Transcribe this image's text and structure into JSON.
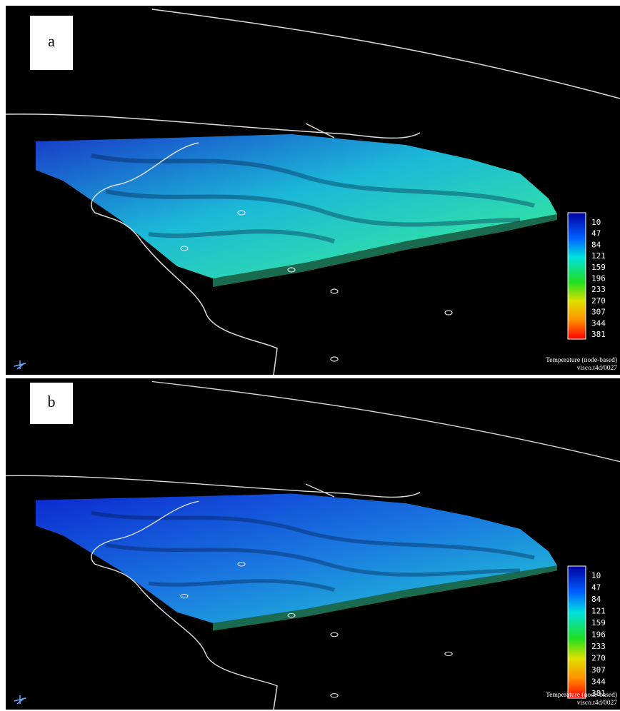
{
  "panels": [
    {
      "label": "a",
      "colorbar": {
        "ticks": [
          10,
          47,
          84,
          121,
          159,
          196,
          233,
          270,
          307,
          344,
          381
        ]
      },
      "caption": [
        "Temperature (node-based)",
        "visco.t4d/0027"
      ]
    },
    {
      "label": "b",
      "colorbar": {
        "ticks": [
          10,
          47,
          84,
          121,
          159,
          196,
          233,
          270,
          307,
          344,
          381
        ]
      },
      "caption": [
        "Temperature (node-based)",
        "visco.t4d/0027"
      ]
    }
  ]
}
